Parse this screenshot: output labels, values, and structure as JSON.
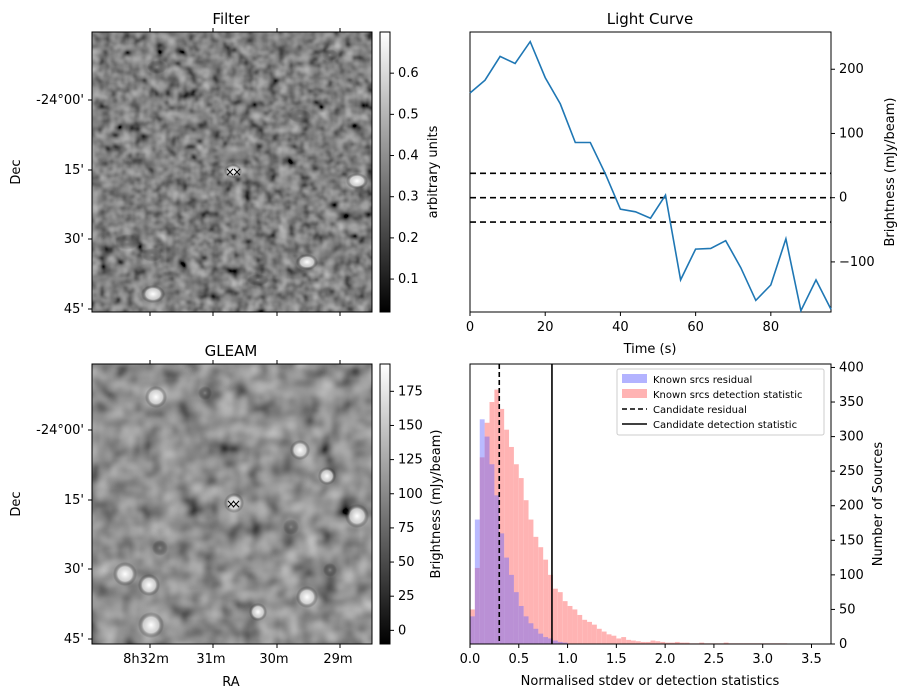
{
  "colors": {
    "line": "#1f77b4",
    "residual_hist": "#b3b3ff",
    "detection_hist": "#ffb3b3",
    "overlap": "#c080b0",
    "marker_red": "#ff0000",
    "marker_blue": "#0000ff"
  },
  "chart_data": [
    {
      "type": "image",
      "title": "Filter",
      "xlabel": "",
      "ylabel": "Dec",
      "ytick_labels": [
        "-24°00'",
        "15'",
        "30'",
        "45'"
      ],
      "colorbar": {
        "label": "arbitrary units",
        "tick_labels": [
          "0.1",
          "0.2",
          "0.3",
          "0.4",
          "0.5",
          "0.6"
        ],
        "range": [
          0.02,
          0.7
        ],
        "ticks": [
          0.1,
          0.2,
          0.3,
          0.4,
          0.5,
          0.6
        ]
      }
    },
    {
      "type": "line",
      "title": "Light Curve",
      "xlabel": "Time (s)",
      "ylabel": "Brightness (mJy/beam)",
      "xlim": [
        0,
        96
      ],
      "ylim": [
        -178,
        258
      ],
      "xticks": [
        0,
        20,
        40,
        60,
        80
      ],
      "yticks": [
        -100,
        0,
        100,
        200
      ],
      "xtick_labels": [
        "0",
        "20",
        "40",
        "60",
        "80"
      ],
      "ytick_labels": [
        "−100",
        "0",
        "100",
        "200"
      ],
      "series": [
        {
          "x": [
            0,
            4,
            8,
            12,
            16,
            20,
            24,
            28,
            32,
            36,
            40,
            44,
            48,
            52,
            56,
            60,
            64,
            68,
            72,
            76,
            80,
            84,
            88,
            92,
            96
          ],
          "values": [
            163,
            183,
            220,
            209,
            243,
            187,
            146,
            86,
            86,
            37,
            -18,
            -22,
            -32,
            4,
            -128,
            -80,
            -79,
            -67,
            -109,
            -160,
            -136,
            -64,
            -176,
            -128,
            -174
          ]
        }
      ],
      "hlines": [
        {
          "y": 38,
          "style": "dashed"
        },
        {
          "y": 0,
          "style": "dashed"
        },
        {
          "y": -38,
          "style": "dashed"
        }
      ]
    },
    {
      "type": "image",
      "title": "GLEAM",
      "xlabel": "RA",
      "ylabel": "Dec",
      "ytick_labels": [
        "-24°00'",
        "15'",
        "30'",
        "45'"
      ],
      "xtick_labels": [
        "8h32m",
        "31m",
        "30m",
        "29m"
      ],
      "colorbar": {
        "label": "Brightness (mJy/beam)",
        "tick_labels": [
          "0",
          "25",
          "50",
          "75",
          "100",
          "125",
          "150",
          "175"
        ],
        "range": [
          -10,
          195
        ],
        "ticks": [
          0,
          25,
          50,
          75,
          100,
          125,
          150,
          175
        ]
      }
    },
    {
      "type": "histogram",
      "title": "",
      "xlabel": "Normalised stdev or detection statistics",
      "ylabel": "Number of Sources",
      "xlim": [
        0,
        3.7
      ],
      "ylim": [
        0,
        405
      ],
      "xticks": [
        0,
        0.5,
        1,
        1.5,
        2,
        2.5,
        3,
        3.5
      ],
      "yticks": [
        0,
        50,
        100,
        150,
        200,
        250,
        300,
        350,
        400
      ],
      "xtick_labels": [
        "0.0",
        "0.5",
        "1.0",
        "1.5",
        "2.0",
        "2.5",
        "3.0",
        "3.5"
      ],
      "ytick_labels": [
        "0",
        "50",
        "100",
        "150",
        "200",
        "250",
        "300",
        "350",
        "400"
      ],
      "legend_position": "top-right",
      "series": [
        {
          "name": "Known srcs residual",
          "bin_start": 0.0,
          "bin_width": 0.05,
          "values": [
            40,
            180,
            325,
            300,
            260,
            215,
            160,
            125,
            100,
            75,
            55,
            40,
            30,
            22,
            15,
            10,
            8,
            5,
            3,
            2
          ]
        },
        {
          "name": "Known srcs detection statistic",
          "bin_start": 0.0,
          "bin_width": 0.05,
          "values": [
            50,
            110,
            270,
            320,
            350,
            368,
            340,
            310,
            285,
            260,
            240,
            208,
            180,
            155,
            140,
            122,
            100,
            80,
            75,
            62,
            55,
            50,
            42,
            35,
            32,
            28,
            22,
            18,
            14,
            12,
            8,
            10,
            6,
            5,
            4,
            3,
            3,
            5,
            4,
            3,
            2,
            2,
            3,
            2,
            2,
            1,
            1,
            2,
            1,
            1,
            1,
            1,
            2,
            1,
            1,
            1,
            1,
            1,
            1,
            1,
            1,
            1,
            1,
            1,
            1,
            0,
            0,
            0,
            0,
            0,
            0,
            0,
            0,
            0
          ]
        }
      ],
      "vlines": [
        {
          "name": "Candidate residual",
          "x": 0.3,
          "style": "dashed"
        },
        {
          "name": "Candidate detection statistic",
          "x": 0.84,
          "style": "solid"
        }
      ]
    }
  ]
}
